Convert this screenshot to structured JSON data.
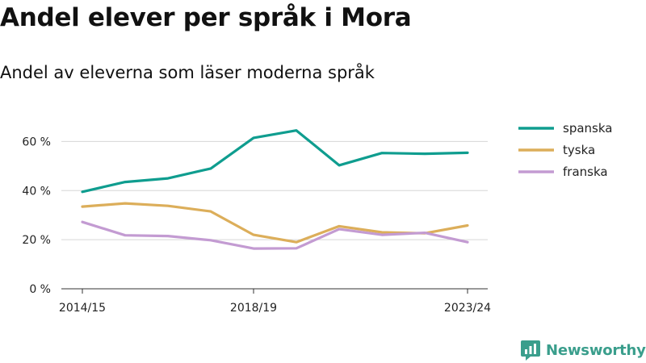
{
  "title": "Andel elever per språk i Mora",
  "subtitle": "Andel av eleverna som läser moderna språk",
  "brand": {
    "name": "Newsworthy",
    "icon": "newsworthy-logo-icon",
    "color": "#3a9e8c"
  },
  "chart_data": {
    "type": "line",
    "x": [
      "2014/15",
      "2015/16",
      "2016/17",
      "2017/18",
      "2018/19",
      "2019/20",
      "2020/21",
      "2021/22",
      "2022/23",
      "2023/24"
    ],
    "x_tick_labels": [
      "2014/15",
      "2018/19",
      "2023/24"
    ],
    "y_tick_labels": [
      "0 %",
      "20 %",
      "40 %",
      "60 %"
    ],
    "ylim": [
      0,
      70
    ],
    "grid": true,
    "legend_position": "right",
    "series": [
      {
        "name": "spanska",
        "color": "#0f9d8f",
        "values": [
          39.5,
          43.5,
          45,
          49,
          61.5,
          64.5,
          50.3,
          55.3,
          55,
          55.4
        ]
      },
      {
        "name": "tyska",
        "color": "#dcae5a",
        "values": [
          33.5,
          34.8,
          33.8,
          31.5,
          22,
          19,
          25.5,
          23,
          22.6,
          25.8
        ]
      },
      {
        "name": "franska",
        "color": "#c39bd2",
        "values": [
          27.2,
          21.8,
          21.5,
          19.8,
          16.4,
          16.5,
          24.3,
          22,
          22.8,
          19
        ]
      }
    ]
  }
}
